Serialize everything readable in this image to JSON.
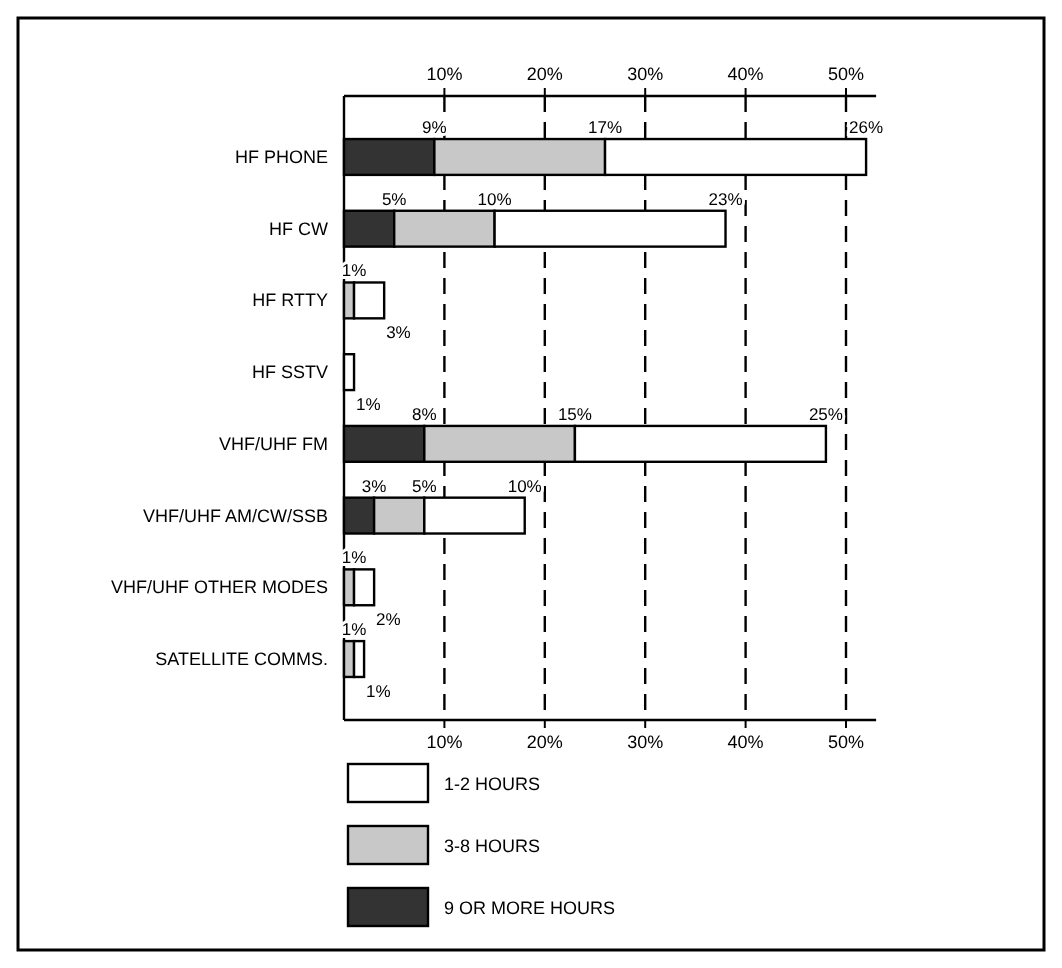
{
  "chart_data": {
    "type": "bar",
    "orientation": "horizontal",
    "stacked": true,
    "categories": [
      "HF PHONE",
      "HF CW",
      "HF RTTY",
      "HF SSTV",
      "VHF/UHF FM",
      "VHF/UHF AM/CW/SSB",
      "VHF/UHF OTHER MODES",
      "SATELLITE COMMS."
    ],
    "series": [
      {
        "name": "9 OR MORE HOURS",
        "color": "#333333",
        "values": [
          9,
          5,
          0,
          0,
          8,
          3,
          0,
          0
        ],
        "value_labels": [
          "9%",
          "5%",
          null,
          null,
          "8%",
          "3%",
          null,
          null
        ]
      },
      {
        "name": "3-8 HOURS",
        "color": "#c8c8c8",
        "values": [
          17,
          10,
          1,
          0,
          15,
          5,
          1,
          1
        ],
        "value_labels": [
          "17%",
          "10%",
          "1%",
          null,
          "15%",
          "5%",
          "1%",
          "1%"
        ]
      },
      {
        "name": "1-2 HOURS",
        "color": "#ffffff",
        "values": [
          26,
          23,
          3,
          1,
          25,
          10,
          2,
          1
        ],
        "value_labels": [
          "26%",
          "23%",
          "3%",
          "1%",
          "25%",
          "10%",
          "2%",
          "1%"
        ]
      }
    ],
    "xlim": [
      0,
      53
    ],
    "xticks": [
      {
        "value": 10,
        "label": "10%"
      },
      {
        "value": 20,
        "label": "20%"
      },
      {
        "value": 30,
        "label": "30%"
      },
      {
        "value": 40,
        "label": "40%"
      },
      {
        "value": 50,
        "label": "50%"
      }
    ],
    "x2lim": [
      0,
      53
    ],
    "x2ticks": [
      {
        "value": 10,
        "label": "10%"
      },
      {
        "value": 20,
        "label": "20%"
      },
      {
        "value": 30,
        "label": "30%"
      },
      {
        "value": 40,
        "label": "40%"
      },
      {
        "value": 50,
        "label": "50%"
      }
    ],
    "grid": "x",
    "legend": "bottom"
  }
}
